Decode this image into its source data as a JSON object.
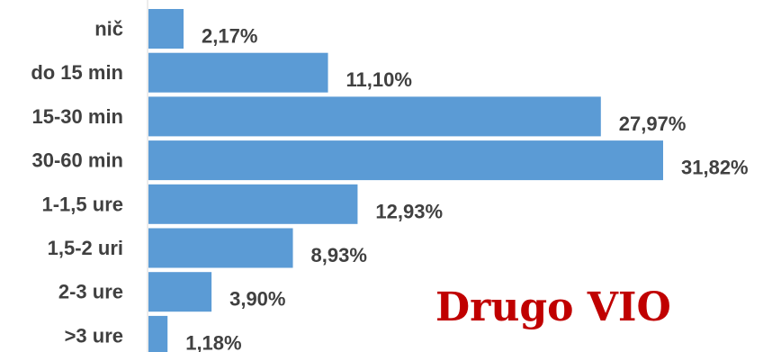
{
  "chart_data": {
    "type": "bar",
    "orientation": "horizontal",
    "categories": [
      "nič",
      "do 15 min",
      "15-30 min",
      "30-60 min",
      "1-1,5 ure",
      "1,5-2 uri",
      "2-3 ure",
      ">3 ure"
    ],
    "values": [
      2.17,
      11.1,
      27.97,
      31.82,
      12.93,
      8.93,
      3.9,
      1.18
    ],
    "value_labels": [
      "2,17%",
      "11,10%",
      "27,97%",
      "31,82%",
      "12,93%",
      "8,93%",
      "3,90%",
      "1,18%"
    ],
    "title": "",
    "xlabel": "",
    "ylabel": "",
    "xlim": [
      0,
      33
    ],
    "grid": false,
    "legend": "none",
    "annotations": [
      {
        "text": "Drugo VIO",
        "color": "#C00000"
      }
    ],
    "colors": {
      "bar": "#5B9BD5",
      "label": "#404040",
      "axis": "#D9D9D9"
    }
  }
}
